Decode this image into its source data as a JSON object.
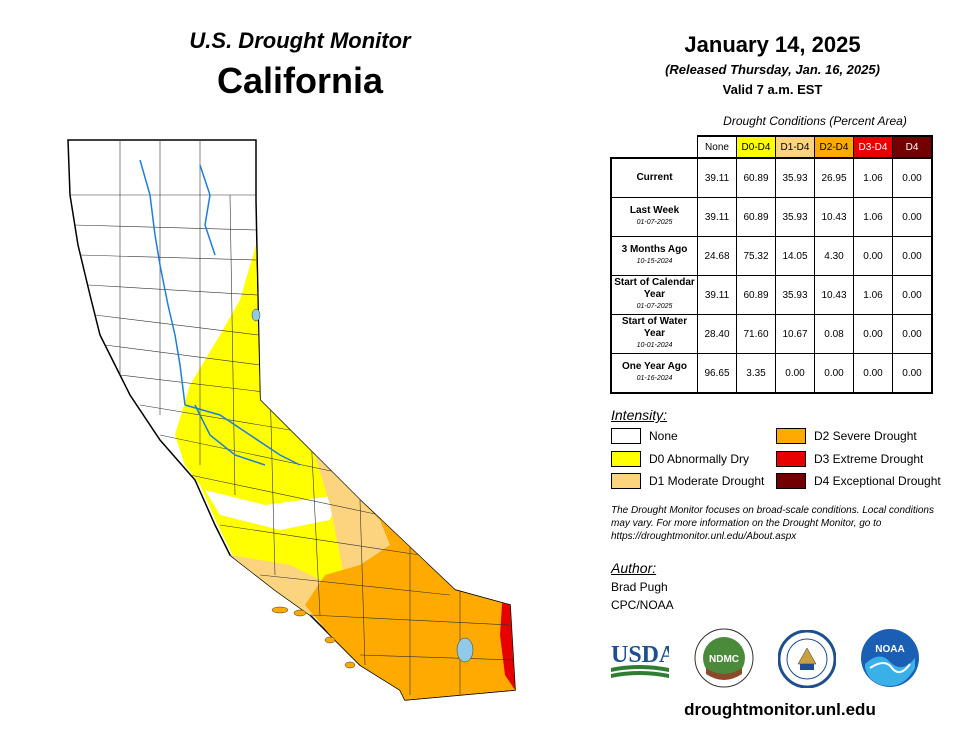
{
  "header": {
    "title": "U.S. Drought Monitor",
    "state": "California",
    "date": "January 14, 2025",
    "released": "(Released Thursday, Jan. 16, 2025)",
    "valid": "Valid 7 a.m. EST"
  },
  "table": {
    "title": "Drought Conditions (Percent Area)",
    "columns": [
      "None",
      "D0-D4",
      "D1-D4",
      "D2-D4",
      "D3-D4",
      "D4"
    ],
    "column_colors": [
      "#ffffff",
      "#ffff00",
      "#fcd37f",
      "#ffaa00",
      "#e60000",
      "#730000"
    ],
    "rows": [
      {
        "label": "Current",
        "sub": "",
        "values": [
          "39.11",
          "60.89",
          "35.93",
          "26.95",
          "1.06",
          "0.00"
        ]
      },
      {
        "label": "Last Week",
        "sub": "01-07-2025",
        "values": [
          "39.11",
          "60.89",
          "35.93",
          "10.43",
          "1.06",
          "0.00"
        ]
      },
      {
        "label": "3 Months Ago",
        "sub": "10-15-2024",
        "values": [
          "24.68",
          "75.32",
          "14.05",
          "4.30",
          "0.00",
          "0.00"
        ]
      },
      {
        "label": "Start of Calendar Year",
        "sub": "01-07-2025",
        "values": [
          "39.11",
          "60.89",
          "35.93",
          "10.43",
          "1.06",
          "0.00"
        ]
      },
      {
        "label": "Start of Water Year",
        "sub": "10-01-2024",
        "values": [
          "28.40",
          "71.60",
          "10.67",
          "0.08",
          "0.00",
          "0.00"
        ]
      },
      {
        "label": "One Year Ago",
        "sub": "01-16-2024",
        "values": [
          "96.65",
          "3.35",
          "0.00",
          "0.00",
          "0.00",
          "0.00"
        ]
      }
    ]
  },
  "legend": {
    "title": "Intensity:",
    "items": [
      {
        "label": "None",
        "color": "#ffffff"
      },
      {
        "label": "D0 Abnormally Dry",
        "color": "#ffff00"
      },
      {
        "label": "D1 Moderate Drought",
        "color": "#fcd37f"
      },
      {
        "label": "D2 Severe Drought",
        "color": "#ffaa00"
      },
      {
        "label": "D3 Extreme Drought",
        "color": "#e60000"
      },
      {
        "label": "D4 Exceptional Drought",
        "color": "#730000"
      }
    ]
  },
  "note": "The Drought Monitor focuses on broad-scale conditions. Local conditions may vary. For more information on the Drought Monitor, go to https://droughtmonitor.unl.edu/About.aspx",
  "author": {
    "label": "Author:",
    "name": "Brad Pugh",
    "org": "CPC/NOAA"
  },
  "logos": {
    "usda": "USDA",
    "ndmc": "NDMC",
    "noaa": "NOAA"
  },
  "website": "droughtmonitor.unl.edu",
  "colors": {
    "none": "#ffffff",
    "d0": "#ffff00",
    "d1": "#fcd37f",
    "d2": "#ffaa00",
    "d3": "#e60000",
    "water": "#8fcbe8",
    "river": "#1e7fd8"
  }
}
